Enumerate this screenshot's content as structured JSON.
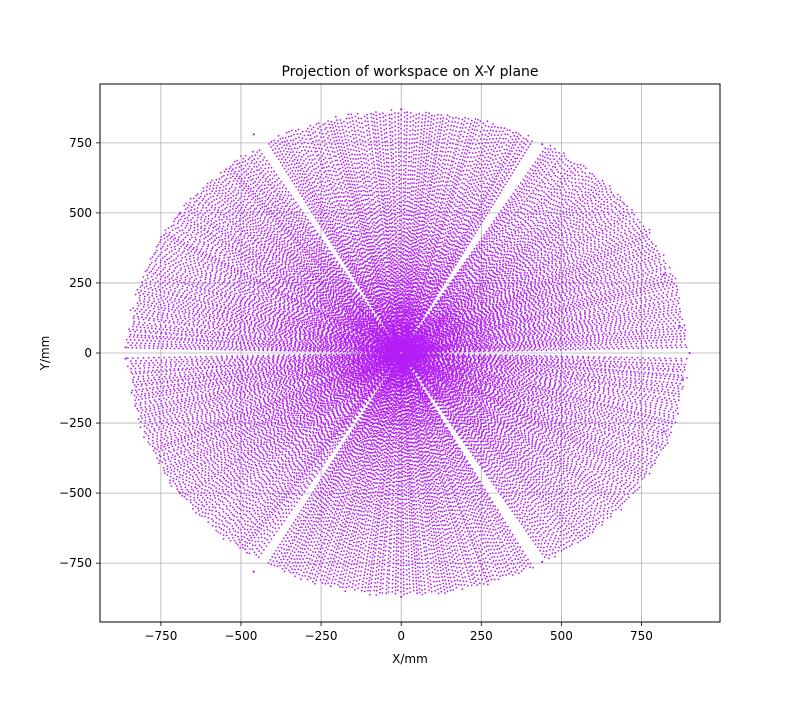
{
  "chart_data": {
    "type": "scatter",
    "title": "Projection of workspace on X-Y plane",
    "xlabel": "X/mm",
    "ylabel": "Y/mm",
    "xlim": [
      -940,
      995
    ],
    "ylim": [
      -960,
      960
    ],
    "xticks": [
      -750,
      -500,
      -250,
      0,
      250,
      500,
      750
    ],
    "xtick_labels": [
      "−750",
      "−500",
      "−250",
      "0",
      "250",
      "500",
      "750"
    ],
    "yticks": [
      -750,
      -500,
      -250,
      0,
      250,
      500,
      750
    ],
    "ytick_labels": [
      "−750",
      "−500",
      "−250",
      "0",
      "250",
      "500",
      "750"
    ],
    "grid": true,
    "legend": "none",
    "marker_color": "#b41ef5",
    "series": [
      {
        "description": "Point cloud of reachable end-effector positions; roughly a disc centred at the origin",
        "radius_max_left": 860,
        "radius_max_right": 900,
        "radius_max_up": 870,
        "radius_max_down": 870,
        "gap_ray_angles_deg": [
          0,
          60,
          120,
          180,
          240,
          300
        ]
      }
    ],
    "sample_points": [
      {
        "x": 900,
        "y": 0
      },
      {
        "x": 870,
        "y": 95
      },
      {
        "x": 880,
        "y": -95
      },
      {
        "x": 0,
        "y": 870
      },
      {
        "x": 0,
        "y": -870
      },
      {
        "x": -860,
        "y": 20
      },
      {
        "x": -860,
        "y": -20
      },
      {
        "x": -460,
        "y": 780
      },
      {
        "x": -460,
        "y": -780
      },
      {
        "x": 440,
        "y": 745
      },
      {
        "x": 440,
        "y": -745
      },
      {
        "x": 820,
        "y": 280
      },
      {
        "x": 820,
        "y": -280
      },
      {
        "x": -690,
        "y": 500
      },
      {
        "x": -690,
        "y": -500
      }
    ]
  }
}
